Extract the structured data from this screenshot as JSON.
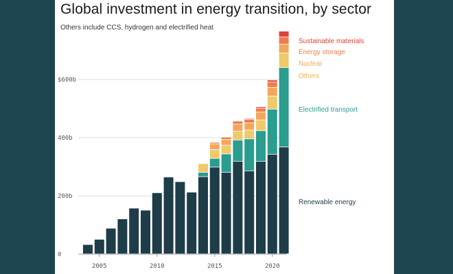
{
  "title": "Global investment in energy transition, by sector",
  "subtitle": "Others include CCS, hydrogen and electrified heat",
  "chart_data": {
    "type": "bar",
    "stacked": true,
    "categories": [
      2004,
      2005,
      2006,
      2007,
      2008,
      2009,
      2010,
      2011,
      2012,
      2013,
      2014,
      2015,
      2016,
      2017,
      2018,
      2019,
      2020,
      2021
    ],
    "ylim": [
      0,
      760
    ],
    "y_ticks": [
      0,
      200,
      400,
      600
    ],
    "y_tick_labels": [
      "0",
      "200b",
      "400b",
      "$600b"
    ],
    "x_ticks": [
      2005,
      2010,
      2015,
      2020
    ],
    "x_tick_labels": [
      "2005",
      "2010",
      "2015",
      "2020"
    ],
    "grid": "horizontal",
    "legend_placement": "right, beside stacks",
    "series": [
      {
        "name": "Renewable energy",
        "color": "#1e3d48",
        "values": [
          32,
          50,
          88,
          120,
          157,
          150,
          210,
          264,
          248,
          212,
          265,
          298,
          280,
          318,
          285,
          318,
          342,
          367
        ]
      },
      {
        "name": "Electrified transport",
        "color": "#2a9d8f",
        "values": [
          0,
          0,
          0,
          0,
          0,
          0,
          0,
          0,
          0,
          0,
          15,
          30,
          63,
          73,
          110,
          105,
          155,
          273
        ]
      },
      {
        "name": "Others",
        "color": "#f0c96b",
        "values": [
          0,
          0,
          0,
          0,
          0,
          0,
          0,
          0,
          0,
          0,
          30,
          30,
          30,
          30,
          30,
          37,
          45,
          50
        ]
      },
      {
        "name": "Nuclear",
        "color": "#f2a85c",
        "values": [
          0,
          0,
          0,
          0,
          0,
          0,
          0,
          0,
          0,
          0,
          0,
          20,
          20,
          25,
          25,
          27,
          30,
          30
        ]
      },
      {
        "name": "Energy storage",
        "color": "#ef7d4a",
        "values": [
          0,
          0,
          0,
          0,
          0,
          0,
          0,
          0,
          0,
          0,
          0,
          5,
          8,
          10,
          12,
          13,
          18,
          25
        ]
      },
      {
        "name": "Sustainable materials",
        "color": "#e0403a",
        "values": [
          0,
          0,
          0,
          0,
          0,
          0,
          0,
          0,
          0,
          0,
          0,
          0,
          0,
          0,
          3,
          5,
          7,
          20
        ]
      }
    ]
  }
}
